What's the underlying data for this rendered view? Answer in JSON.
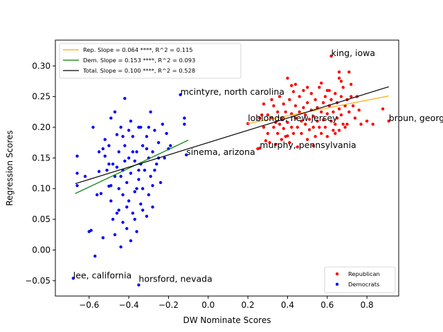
{
  "chart_data": {
    "type": "scatter",
    "xlabel": "DW Nominate Scores",
    "ylabel": "Regression Scores",
    "xlim": [
      -0.77,
      0.96
    ],
    "ylim": [
      -0.075,
      0.342
    ],
    "x_ticks": [
      -0.6,
      -0.4,
      -0.2,
      0.0,
      0.2,
      0.4,
      0.6,
      0.8
    ],
    "x_tick_labels": [
      "−0.6",
      "−0.4",
      "−0.2",
      "0.0",
      "0.2",
      "0.4",
      "0.6",
      "0.8"
    ],
    "y_ticks": [
      -0.05,
      0.0,
      0.05,
      0.1,
      0.15,
      0.2,
      0.25,
      0.3
    ],
    "y_tick_labels": [
      "−0.05",
      "0.00",
      "0.05",
      "0.10",
      "0.15",
      "0.20",
      "0.25",
      "0.30"
    ],
    "grid": false,
    "line_legend": {
      "placement": "upper-left",
      "entries": [
        {
          "label": "Rep. Slope = 0.064 ****, R^2 = 0.115",
          "color": "#ffa500"
        },
        {
          "label": "Dem. Slope = 0.153 ****, R^2 = 0.093",
          "color": "#008000"
        },
        {
          "label": "Total. Slope = 0.100 ****, R^2 = 0.528",
          "color": "#000000"
        }
      ]
    },
    "scatter_legend": {
      "placement": "lower-right",
      "entries": [
        {
          "label": "Republican",
          "color": "#ff0000"
        },
        {
          "label": "Democrats",
          "color": "#0000ff"
        }
      ]
    },
    "fit_lines": [
      {
        "name": "Rep.",
        "color": "#ffa500",
        "x": [
          0.2,
          0.91
        ],
        "y": [
          0.206,
          0.251
        ]
      },
      {
        "name": "Dem.",
        "color": "#008000",
        "x": [
          -0.67,
          -0.1
        ],
        "y": [
          0.092,
          0.179
        ]
      },
      {
        "name": "Total.",
        "color": "#000000",
        "x": [
          -0.67,
          0.91
        ],
        "y": [
          0.108,
          0.266
        ]
      }
    ],
    "annotations": [
      {
        "text": "king, iowa",
        "x": 0.62,
        "y": 0.316
      },
      {
        "text": "mcintyre, north carolina",
        "x": -0.14,
        "y": 0.253
      },
      {
        "text": "lobiondo, new jersey",
        "x": 0.2,
        "y": 0.21
      },
      {
        "text": "broun, georgia",
        "x": 0.91,
        "y": 0.21
      },
      {
        "text": "murphy, pennsylvania",
        "x": 0.26,
        "y": 0.166
      },
      {
        "text": "sinema, arizona",
        "x": -0.11,
        "y": 0.155
      },
      {
        "text": "lee, california",
        "x": -0.68,
        "y": -0.046
      },
      {
        "text": "horsford, nevada",
        "x": -0.35,
        "y": -0.052
      }
    ],
    "series": [
      {
        "name": "Republican",
        "color": "#ff0000",
        "points": [
          [
            0.2,
            0.206
          ],
          [
            0.25,
            0.165
          ],
          [
            0.26,
            0.166
          ],
          [
            0.4,
            0.28
          ],
          [
            0.42,
            0.268
          ],
          [
            0.62,
            0.316
          ],
          [
            0.66,
            0.29
          ],
          [
            0.66,
            0.28
          ],
          [
            0.67,
            0.275
          ],
          [
            0.71,
            0.29
          ],
          [
            0.72,
            0.25
          ],
          [
            0.91,
            0.21
          ],
          [
            0.88,
            0.23
          ],
          [
            0.83,
            0.205
          ],
          [
            0.8,
            0.21
          ],
          [
            0.77,
            0.205
          ],
          [
            0.76,
            0.228
          ],
          [
            0.75,
            0.25
          ],
          [
            0.26,
            0.215
          ],
          [
            0.27,
            0.22
          ],
          [
            0.28,
            0.2
          ],
          [
            0.28,
            0.238
          ],
          [
            0.3,
            0.22
          ],
          [
            0.3,
            0.19
          ],
          [
            0.31,
            0.175
          ],
          [
            0.32,
            0.215
          ],
          [
            0.33,
            0.2
          ],
          [
            0.33,
            0.235
          ],
          [
            0.35,
            0.19
          ],
          [
            0.35,
            0.225
          ],
          [
            0.36,
            0.205
          ],
          [
            0.36,
            0.25
          ],
          [
            0.37,
            0.18
          ],
          [
            0.37,
            0.215
          ],
          [
            0.38,
            0.198
          ],
          [
            0.38,
            0.238
          ],
          [
            0.39,
            0.225
          ],
          [
            0.4,
            0.186
          ],
          [
            0.4,
            0.208
          ],
          [
            0.41,
            0.175
          ],
          [
            0.41,
            0.245
          ],
          [
            0.42,
            0.2
          ],
          [
            0.42,
            0.222
          ],
          [
            0.43,
            0.258
          ],
          [
            0.43,
            0.19
          ],
          [
            0.44,
            0.215
          ],
          [
            0.44,
            0.235
          ],
          [
            0.45,
            0.2
          ],
          [
            0.45,
            0.168
          ],
          [
            0.46,
            0.225
          ],
          [
            0.46,
            0.25
          ],
          [
            0.47,
            0.21
          ],
          [
            0.47,
            0.19
          ],
          [
            0.48,
            0.232
          ],
          [
            0.48,
            0.26
          ],
          [
            0.49,
            0.205
          ],
          [
            0.49,
            0.22
          ],
          [
            0.5,
            0.18
          ],
          [
            0.5,
            0.24
          ],
          [
            0.51,
            0.213
          ],
          [
            0.51,
            0.196
          ],
          [
            0.52,
            0.228
          ],
          [
            0.52,
            0.255
          ],
          [
            0.53,
            0.2
          ],
          [
            0.53,
            0.218
          ],
          [
            0.54,
            0.245
          ],
          [
            0.54,
            0.185
          ],
          [
            0.55,
            0.21
          ],
          [
            0.55,
            0.232
          ],
          [
            0.56,
            0.2
          ],
          [
            0.56,
            0.265
          ],
          [
            0.57,
            0.225
          ],
          [
            0.57,
            0.19
          ],
          [
            0.58,
            0.24
          ],
          [
            0.58,
            0.212
          ],
          [
            0.59,
            0.25
          ],
          [
            0.59,
            0.2
          ],
          [
            0.6,
            0.222
          ],
          [
            0.6,
            0.185
          ],
          [
            0.61,
            0.235
          ],
          [
            0.61,
            0.26
          ],
          [
            0.62,
            0.21
          ],
          [
            0.62,
            0.245
          ],
          [
            0.63,
            0.195
          ],
          [
            0.63,
            0.225
          ],
          [
            0.64,
            0.255
          ],
          [
            0.64,
            0.205
          ],
          [
            0.65,
            0.24
          ],
          [
            0.65,
            0.215
          ],
          [
            0.66,
            0.23
          ],
          [
            0.66,
            0.195
          ],
          [
            0.67,
            0.25
          ],
          [
            0.67,
            0.22
          ],
          [
            0.68,
            0.205
          ],
          [
            0.68,
            0.265
          ],
          [
            0.69,
            0.235
          ],
          [
            0.7,
            0.245
          ],
          [
            0.7,
            0.205
          ],
          [
            0.71,
            0.225
          ],
          [
            0.72,
            0.27
          ],
          [
            0.73,
            0.235
          ],
          [
            0.74,
            0.215
          ],
          [
            0.29,
            0.178
          ],
          [
            0.32,
            0.245
          ],
          [
            0.34,
            0.172
          ],
          [
            0.39,
            0.185
          ],
          [
            0.44,
            0.27
          ],
          [
            0.5,
            0.265
          ],
          [
            0.53,
            0.17
          ],
          [
            0.57,
            0.272
          ],
          [
            0.6,
            0.26
          ],
          [
            0.64,
            0.19
          ],
          [
            0.69,
            0.2
          ],
          [
            0.34,
            0.208
          ]
        ]
      },
      {
        "name": "Democrats",
        "color": "#0000ff",
        "points": [
          [
            -0.68,
            -0.046
          ],
          [
            -0.35,
            -0.057
          ],
          [
            -0.14,
            0.253
          ],
          [
            -0.11,
            0.155
          ],
          [
            -0.66,
            0.153
          ],
          [
            -0.66,
            0.125
          ],
          [
            -0.66,
            0.105
          ],
          [
            -0.6,
            0.03
          ],
          [
            -0.59,
            0.032
          ],
          [
            -0.57,
            -0.01
          ],
          [
            -0.58,
            0.2
          ],
          [
            -0.55,
            0.16
          ],
          [
            -0.55,
            0.128
          ],
          [
            -0.54,
            0.092
          ],
          [
            -0.53,
            0.02
          ],
          [
            -0.52,
            0.18
          ],
          [
            -0.52,
            0.153
          ],
          [
            -0.51,
            0.13
          ],
          [
            -0.5,
            0.17
          ],
          [
            -0.5,
            0.104
          ],
          [
            -0.49,
            0.08
          ],
          [
            -0.49,
            0.215
          ],
          [
            -0.48,
            0.14
          ],
          [
            -0.47,
            0.225
          ],
          [
            -0.47,
            0.12
          ],
          [
            -0.46,
            0.188
          ],
          [
            -0.46,
            0.06
          ],
          [
            -0.45,
            0.16
          ],
          [
            -0.45,
            0.1
          ],
          [
            -0.44,
            0.005
          ],
          [
            -0.44,
            0.2
          ],
          [
            -0.43,
            0.13
          ],
          [
            -0.43,
            0.045
          ],
          [
            -0.42,
            0.247
          ],
          [
            -0.42,
            0.17
          ],
          [
            -0.41,
            0.11
          ],
          [
            -0.41,
            0.035
          ],
          [
            -0.4,
            0.15
          ],
          [
            -0.4,
            0.08
          ],
          [
            -0.39,
            0.21
          ],
          [
            -0.39,
            0.125
          ],
          [
            -0.38,
            0.06
          ],
          [
            -0.38,
            0.185
          ],
          [
            -0.37,
            0.145
          ],
          [
            -0.37,
            0.095
          ],
          [
            -0.36,
            0.16
          ],
          [
            -0.36,
            0.03
          ],
          [
            -0.35,
            0.2
          ],
          [
            -0.35,
            0.115
          ],
          [
            -0.34,
            0.075
          ],
          [
            -0.34,
            0.14
          ],
          [
            -0.33,
            0.17
          ],
          [
            -0.33,
            0.1
          ],
          [
            -0.32,
            0.13
          ],
          [
            -0.31,
            0.055
          ],
          [
            -0.31,
            0.185
          ],
          [
            -0.3,
            0.15
          ],
          [
            -0.3,
            0.09
          ],
          [
            -0.29,
            0.225
          ],
          [
            -0.29,
            0.12
          ],
          [
            -0.28,
            0.16
          ],
          [
            -0.28,
            0.07
          ],
          [
            -0.27,
            0.195
          ],
          [
            -0.26,
            0.14
          ],
          [
            -0.25,
            0.175
          ],
          [
            -0.24,
            0.11
          ],
          [
            -0.23,
            0.205
          ],
          [
            -0.22,
            0.15
          ],
          [
            -0.21,
            0.19
          ],
          [
            -0.2,
            0.165
          ],
          [
            -0.19,
            0.17
          ],
          [
            -0.12,
            0.215
          ],
          [
            -0.12,
            0.205
          ],
          [
            -0.47,
            0.025
          ],
          [
            -0.43,
            0.09
          ],
          [
            -0.48,
            0.05
          ],
          [
            -0.56,
            0.09
          ],
          [
            -0.62,
            0.12
          ],
          [
            -0.5,
            0.14
          ],
          [
            -0.45,
            0.065
          ],
          [
            -0.41,
            0.07
          ],
          [
            -0.39,
            0.015
          ],
          [
            -0.36,
            0.1
          ],
          [
            -0.34,
            0.2
          ],
          [
            -0.3,
            0.2
          ],
          [
            -0.27,
            0.13
          ],
          [
            -0.25,
            0.15
          ],
          [
            -0.53,
            0.165
          ],
          [
            -0.46,
            0.135
          ],
          [
            -0.42,
            0.145
          ],
          [
            -0.38,
            0.16
          ],
          [
            -0.33,
            0.065
          ],
          [
            -0.44,
            0.12
          ],
          [
            -0.49,
            0.105
          ],
          [
            -0.4,
            0.195
          ],
          [
            -0.35,
            0.13
          ],
          [
            -0.37,
            0.05
          ],
          [
            -0.43,
            0.185
          ],
          [
            -0.31,
            0.165
          ],
          [
            -0.28,
            0.105
          ]
        ]
      }
    ]
  }
}
